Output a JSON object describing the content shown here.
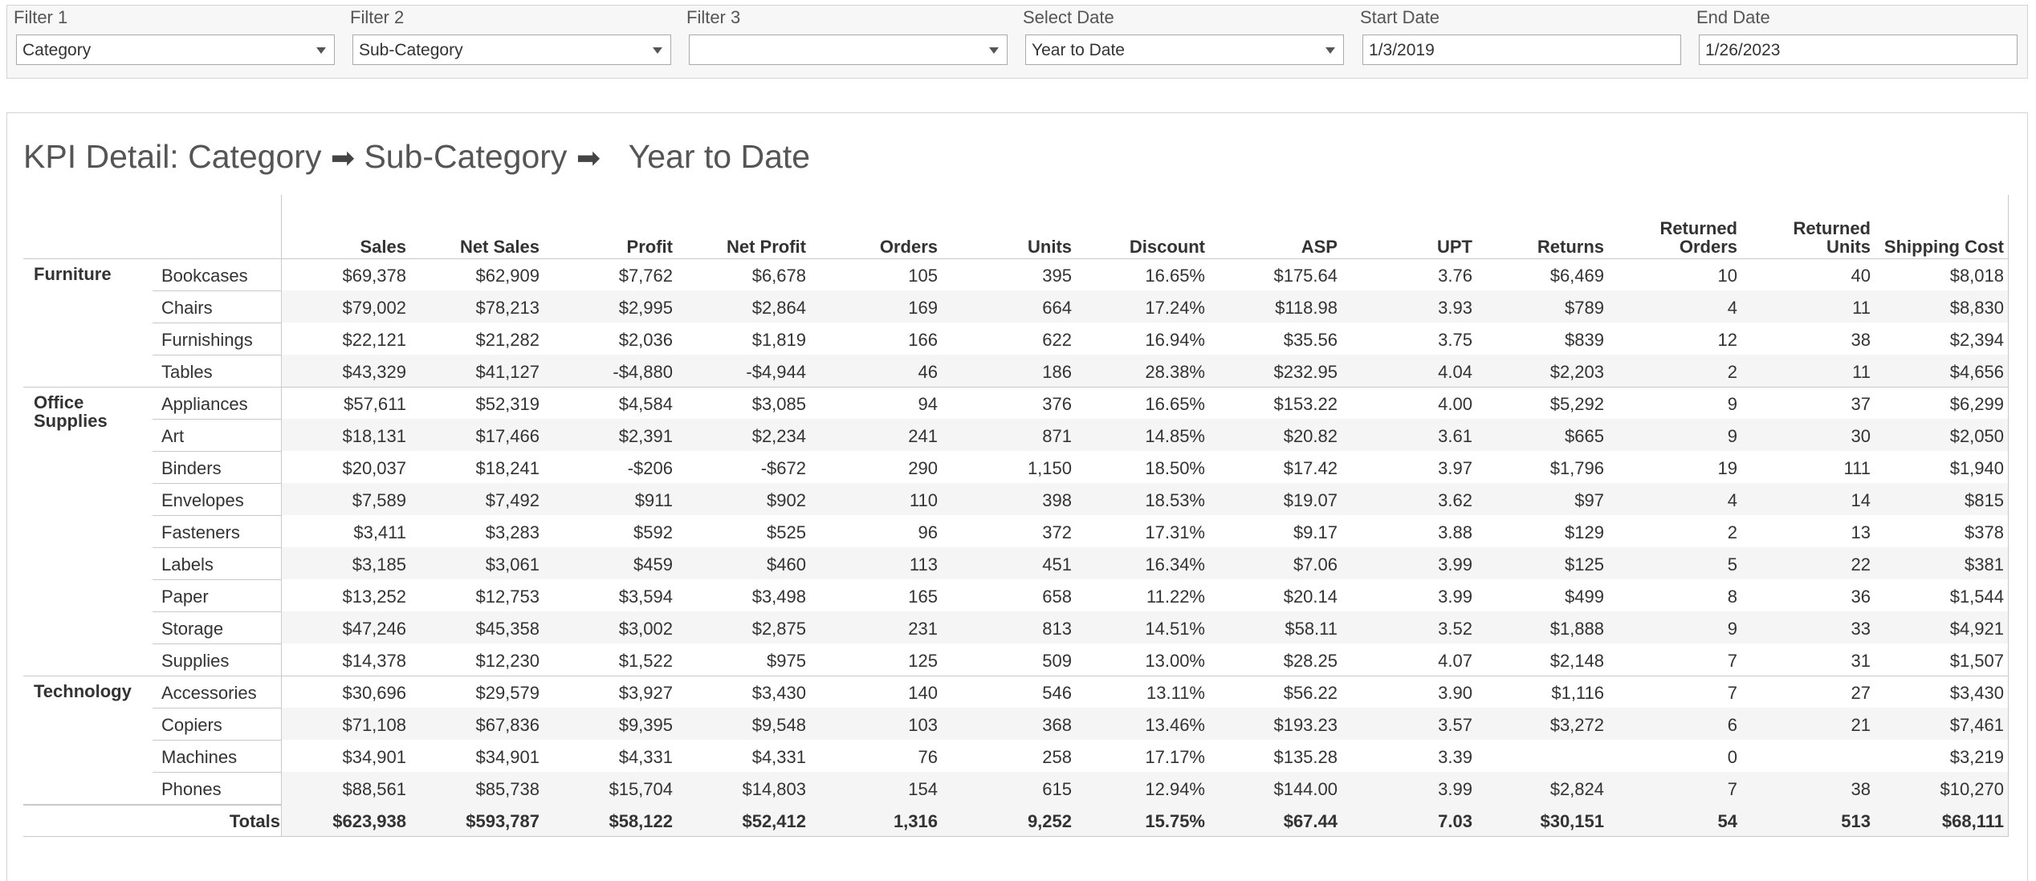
{
  "filters": [
    {
      "label": "Filter 1",
      "value": "Category",
      "dropdown": true
    },
    {
      "label": "Filter 2",
      "value": "Sub-Category",
      "dropdown": true
    },
    {
      "label": "Filter 3",
      "value": "",
      "dropdown": true
    },
    {
      "label": "Select Date",
      "value": "Year to Date",
      "dropdown": true
    },
    {
      "label": "Start Date",
      "value": "1/3/2019",
      "dropdown": false
    },
    {
      "label": "End Date",
      "value": "1/26/2023",
      "dropdown": false
    }
  ],
  "title": {
    "prefix": "KPI Detail: Category",
    "arrow": "➡",
    "middle": "Sub-Category",
    "suffix": "Year to Date"
  },
  "table": {
    "columns": [
      "Sales",
      "Net Sales",
      "Profit",
      "Net Profit",
      "Orders",
      "Units",
      "Discount",
      "ASP",
      "UPT",
      "Returns",
      "Returned Orders",
      "Returned Units",
      "Shipping Cost"
    ],
    "groups": [
      {
        "category": "Furniture",
        "rows": [
          {
            "name": "Bookcases",
            "values": [
              "$69,378",
              "$62,909",
              "$7,762",
              "$6,678",
              "105",
              "395",
              "16.65%",
              "$175.64",
              "3.76",
              "$6,469",
              "10",
              "40",
              "$8,018"
            ]
          },
          {
            "name": "Chairs",
            "values": [
              "$79,002",
              "$78,213",
              "$2,995",
              "$2,864",
              "169",
              "664",
              "17.24%",
              "$118.98",
              "3.93",
              "$789",
              "4",
              "11",
              "$8,830"
            ]
          },
          {
            "name": "Furnishings",
            "values": [
              "$22,121",
              "$21,282",
              "$2,036",
              "$1,819",
              "166",
              "622",
              "16.94%",
              "$35.56",
              "3.75",
              "$839",
              "12",
              "38",
              "$2,394"
            ]
          },
          {
            "name": "Tables",
            "values": [
              "$43,329",
              "$41,127",
              "-$4,880",
              "-$4,944",
              "46",
              "186",
              "28.38%",
              "$232.95",
              "4.04",
              "$2,203",
              "2",
              "11",
              "$4,656"
            ]
          }
        ]
      },
      {
        "category": "Office Supplies",
        "rows": [
          {
            "name": "Appliances",
            "values": [
              "$57,611",
              "$52,319",
              "$4,584",
              "$3,085",
              "94",
              "376",
              "16.65%",
              "$153.22",
              "4.00",
              "$5,292",
              "9",
              "37",
              "$6,299"
            ]
          },
          {
            "name": "Art",
            "values": [
              "$18,131",
              "$17,466",
              "$2,391",
              "$2,234",
              "241",
              "871",
              "14.85%",
              "$20.82",
              "3.61",
              "$665",
              "9",
              "30",
              "$2,050"
            ]
          },
          {
            "name": "Binders",
            "values": [
              "$20,037",
              "$18,241",
              "-$206",
              "-$672",
              "290",
              "1,150",
              "18.50%",
              "$17.42",
              "3.97",
              "$1,796",
              "19",
              "111",
              "$1,940"
            ]
          },
          {
            "name": "Envelopes",
            "values": [
              "$7,589",
              "$7,492",
              "$911",
              "$902",
              "110",
              "398",
              "18.53%",
              "$19.07",
              "3.62",
              "$97",
              "4",
              "14",
              "$815"
            ]
          },
          {
            "name": "Fasteners",
            "values": [
              "$3,411",
              "$3,283",
              "$592",
              "$525",
              "96",
              "372",
              "17.31%",
              "$9.17",
              "3.88",
              "$129",
              "2",
              "13",
              "$378"
            ]
          },
          {
            "name": "Labels",
            "values": [
              "$3,185",
              "$3,061",
              "$459",
              "$460",
              "113",
              "451",
              "16.34%",
              "$7.06",
              "3.99",
              "$125",
              "5",
              "22",
              "$381"
            ]
          },
          {
            "name": "Paper",
            "values": [
              "$13,252",
              "$12,753",
              "$3,594",
              "$3,498",
              "165",
              "658",
              "11.22%",
              "$20.14",
              "3.99",
              "$499",
              "8",
              "36",
              "$1,544"
            ]
          },
          {
            "name": "Storage",
            "values": [
              "$47,246",
              "$45,358",
              "$3,002",
              "$2,875",
              "231",
              "813",
              "14.51%",
              "$58.11",
              "3.52",
              "$1,888",
              "9",
              "33",
              "$4,921"
            ]
          },
          {
            "name": "Supplies",
            "values": [
              "$14,378",
              "$12,230",
              "$1,522",
              "$975",
              "125",
              "509",
              "13.00%",
              "$28.25",
              "4.07",
              "$2,148",
              "7",
              "31",
              "$1,507"
            ]
          }
        ]
      },
      {
        "category": "Technology",
        "rows": [
          {
            "name": "Accessories",
            "values": [
              "$30,696",
              "$29,579",
              "$3,927",
              "$3,430",
              "140",
              "546",
              "13.11%",
              "$56.22",
              "3.90",
              "$1,116",
              "7",
              "27",
              "$3,430"
            ]
          },
          {
            "name": "Copiers",
            "values": [
              "$71,108",
              "$67,836",
              "$9,395",
              "$9,548",
              "103",
              "368",
              "13.46%",
              "$193.23",
              "3.57",
              "$3,272",
              "6",
              "21",
              "$7,461"
            ]
          },
          {
            "name": "Machines",
            "values": [
              "$34,901",
              "$34,901",
              "$4,331",
              "$4,331",
              "76",
              "258",
              "17.17%",
              "$135.28",
              "3.39",
              "",
              "0",
              "",
              "$3,219"
            ]
          },
          {
            "name": "Phones",
            "values": [
              "$88,561",
              "$85,738",
              "$15,704",
              "$14,803",
              "154",
              "615",
              "12.94%",
              "$144.00",
              "3.99",
              "$2,824",
              "7",
              "38",
              "$10,270"
            ]
          }
        ]
      }
    ],
    "totals": {
      "label": "Totals",
      "values": [
        "$623,938",
        "$593,787",
        "$58,122",
        "$52,412",
        "1,316",
        "9,252",
        "15.75%",
        "$67.44",
        "7.03",
        "$30,151",
        "54",
        "513",
        "$68,111"
      ]
    }
  }
}
